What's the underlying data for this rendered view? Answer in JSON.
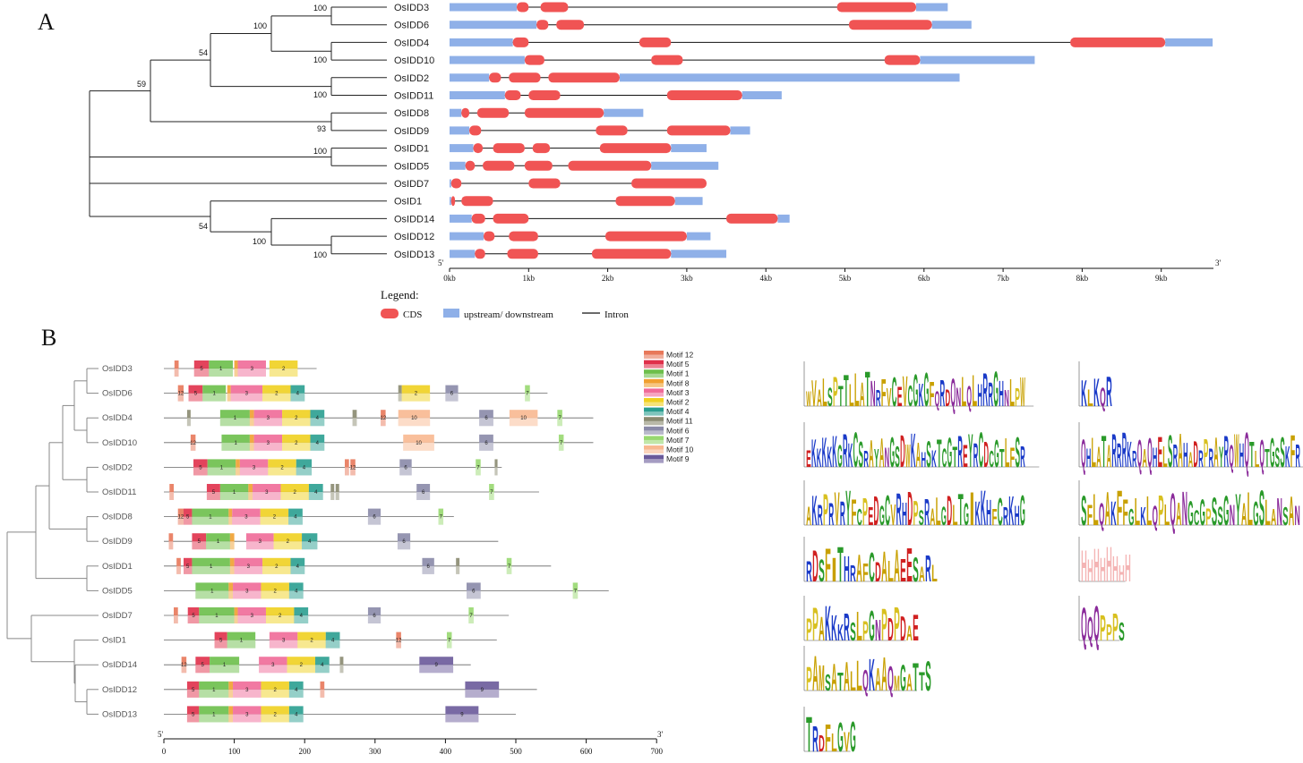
{
  "panels": {
    "a": "A",
    "b": "B"
  },
  "colors": {
    "cds": "#f05454",
    "utr": "#8fb0e8",
    "intron": "#111111",
    "tree": "#222222",
    "tree_b": "#888888"
  },
  "panel_a": {
    "genes": [
      "OsIDD3",
      "OsIDD6",
      "OsIDD4",
      "OsIDD10",
      "OsIDD2",
      "OsIDD11",
      "OsIDD8",
      "OsIDD9",
      "OsIDD1",
      "OsIDD5",
      "OsIDD7",
      "OsID1",
      "OsIDD14",
      "OsIDD12",
      "OsIDD13"
    ],
    "bootstrap": [
      "100",
      "100",
      "54",
      "100",
      "59",
      "100",
      "93",
      "100",
      "54",
      "100",
      "100"
    ],
    "end5": "5'",
    "end3": "3'",
    "axis_ticks": [
      "0kb",
      "1kb",
      "2kb",
      "3kb",
      "4kb",
      "5kb",
      "6kb",
      "7kb",
      "8kb",
      "9kb"
    ],
    "gene_structure": [
      {
        "start": 0,
        "end": 6.3,
        "cds": [
          [
            0.85,
            1.0
          ],
          [
            1.15,
            1.5
          ],
          [
            4.9,
            5.9
          ]
        ]
      },
      {
        "start": 0,
        "end": 6.6,
        "cds": [
          [
            1.1,
            1.25
          ],
          [
            1.35,
            1.7
          ],
          [
            5.05,
            6.1
          ]
        ]
      },
      {
        "start": 0,
        "end": 9.65,
        "cds": [
          [
            0.8,
            1.0
          ],
          [
            2.4,
            2.8
          ],
          [
            7.85,
            9.05
          ]
        ]
      },
      {
        "start": 0,
        "end": 7.4,
        "cds": [
          [
            0.95,
            1.2
          ],
          [
            2.55,
            2.95
          ],
          [
            5.5,
            5.95
          ]
        ]
      },
      {
        "start": 0,
        "end": 6.45,
        "cds": [
          [
            0.5,
            0.65
          ],
          [
            0.75,
            1.15
          ],
          [
            1.25,
            2.15
          ]
        ]
      },
      {
        "start": 0,
        "end": 4.2,
        "cds": [
          [
            0.7,
            0.9
          ],
          [
            1.0,
            1.4
          ],
          [
            2.75,
            3.7
          ]
        ]
      },
      {
        "start": 0,
        "end": 2.45,
        "cds": [
          [
            0.15,
            0.25
          ],
          [
            0.35,
            0.75
          ],
          [
            0.95,
            1.95
          ]
        ]
      },
      {
        "start": 0,
        "end": 3.8,
        "cds": [
          [
            0.25,
            0.4
          ],
          [
            1.85,
            2.25
          ],
          [
            2.75,
            3.55
          ]
        ]
      },
      {
        "start": 0,
        "end": 3.25,
        "cds": [
          [
            0.3,
            0.42
          ],
          [
            0.55,
            0.95
          ],
          [
            1.05,
            1.27
          ],
          [
            1.9,
            2.8
          ]
        ]
      },
      {
        "start": 0,
        "end": 3.4,
        "cds": [
          [
            0.2,
            0.32
          ],
          [
            0.42,
            0.82
          ],
          [
            0.95,
            1.3
          ],
          [
            1.5,
            2.55
          ]
        ]
      },
      {
        "start": 0,
        "end": 3.25,
        "cds": [
          [
            0.02,
            0.15
          ],
          [
            1.0,
            1.4
          ],
          [
            2.3,
            3.25
          ]
        ]
      },
      {
        "start": 0,
        "end": 3.2,
        "cds": [
          [
            0.02,
            0.07
          ],
          [
            0.15,
            0.55
          ],
          [
            2.1,
            2.85
          ]
        ]
      },
      {
        "start": 0,
        "end": 4.3,
        "cds": [
          [
            0.28,
            0.45
          ],
          [
            0.55,
            1.0
          ],
          [
            3.5,
            4.15
          ]
        ]
      },
      {
        "start": 0,
        "end": 3.3,
        "cds": [
          [
            0.43,
            0.57
          ],
          [
            0.75,
            1.12
          ],
          [
            1.97,
            3.0
          ]
        ]
      },
      {
        "start": 0,
        "end": 3.5,
        "cds": [
          [
            0.32,
            0.45
          ],
          [
            0.73,
            1.12
          ],
          [
            1.8,
            2.8
          ]
        ]
      }
    ],
    "legend": {
      "title": "Legend:",
      "cds": "CDS",
      "utr": "upstream/ downstream",
      "intron": "Intron"
    }
  },
  "panel_b": {
    "genes": [
      "OsIDD3",
      "OsIDD6",
      "OsIDD4",
      "OsIDD10",
      "OsIDD2",
      "OsIDD11",
      "OsIDD8",
      "OsIDD9",
      "OsIDD1",
      "OsIDD5",
      "OsIDD7",
      "OsID1",
      "OsIDD14",
      "OsIDD12",
      "OsIDD13"
    ],
    "end5": "5'",
    "end3": "3'",
    "axis_ticks": [
      "0",
      "100",
      "200",
      "300",
      "400",
      "500",
      "600",
      "700"
    ],
    "motif_legend": [
      {
        "label": "Motif 12",
        "id": "12",
        "color": "#e8785a"
      },
      {
        "label": "Motif 5",
        "id": "5",
        "color": "#e0304a"
      },
      {
        "label": "Motif 1",
        "id": "1",
        "color": "#6cbf4a"
      },
      {
        "label": "Motif 8",
        "id": "8",
        "color": "#f0a030"
      },
      {
        "label": "Motif 3",
        "id": "3",
        "color": "#f06a98"
      },
      {
        "label": "Motif 2",
        "id": "2",
        "color": "#f0d020"
      },
      {
        "label": "Motif 4",
        "id": "4",
        "color": "#2a9e90"
      },
      {
        "label": "Motif 11",
        "id": "11",
        "color": "#8a8a70"
      },
      {
        "label": "Motif 6",
        "id": "6",
        "color": "#8a8aa8"
      },
      {
        "label": "Motif 7",
        "id": "7",
        "color": "#98d870"
      },
      {
        "label": "Motif 10",
        "id": "10",
        "color": "#f8b890"
      },
      {
        "label": "Motif 9",
        "id": "9",
        "color": "#6a5a9a"
      }
    ],
    "proteins": [
      {
        "len": 217,
        "motifs": [
          [
            "12",
            15,
            21
          ],
          [
            "5",
            43,
            64
          ],
          [
            "1",
            64,
            98
          ],
          [
            "8",
            100,
            105
          ],
          [
            "3",
            105,
            145
          ],
          [
            "2",
            150,
            190
          ]
        ]
      },
      {
        "len": 545,
        "motifs": [
          [
            "12",
            20,
            28
          ],
          [
            "5",
            35,
            55
          ],
          [
            "1",
            55,
            88
          ],
          [
            "8",
            90,
            95
          ],
          [
            "3",
            95,
            140
          ],
          [
            "2",
            140,
            180
          ],
          [
            "4",
            180,
            200
          ],
          [
            "11",
            333,
            338
          ],
          [
            "2",
            338,
            378
          ],
          [
            "6",
            400,
            418
          ],
          [
            "7",
            513,
            520
          ]
        ]
      },
      {
        "len": 610,
        "motifs": [
          [
            "11",
            33,
            38
          ],
          [
            "1",
            80,
            122
          ],
          [
            "8",
            122,
            128
          ],
          [
            "3",
            128,
            168
          ],
          [
            "2",
            168,
            208
          ],
          [
            "4",
            208,
            228
          ],
          [
            "11",
            268,
            274
          ],
          [
            "12",
            308,
            315
          ],
          [
            "10",
            333,
            378
          ],
          [
            "6",
            448,
            468
          ],
          [
            "10",
            491,
            531
          ],
          [
            "7",
            559,
            566
          ]
        ]
      },
      {
        "len": 610,
        "motifs": [
          [
            "12",
            38,
            45
          ],
          [
            "1",
            82,
            122
          ],
          [
            "8",
            122,
            128
          ],
          [
            "3",
            128,
            168
          ],
          [
            "2",
            168,
            208
          ],
          [
            "4",
            208,
            228
          ],
          [
            "10",
            340,
            384
          ],
          [
            "6",
            448,
            468
          ],
          [
            "7",
            561,
            568
          ]
        ]
      },
      {
        "len": 480,
        "motifs": [
          [
            "5",
            42,
            62
          ],
          [
            "1",
            62,
            102
          ],
          [
            "8",
            102,
            108
          ],
          [
            "3",
            108,
            148
          ],
          [
            "2",
            148,
            188
          ],
          [
            "4",
            188,
            210
          ],
          [
            "12",
            257,
            263
          ],
          [
            "12",
            265,
            272
          ],
          [
            "6",
            335,
            352
          ],
          [
            "7",
            443,
            450
          ],
          [
            "11",
            470,
            474
          ]
        ]
      },
      {
        "len": 533,
        "motifs": [
          [
            "12",
            8,
            14
          ],
          [
            "5",
            61,
            80
          ],
          [
            "1",
            80,
            120
          ],
          [
            "8",
            120,
            126
          ],
          [
            "3",
            126,
            166
          ],
          [
            "2",
            166,
            206
          ],
          [
            "4",
            206,
            226
          ],
          [
            "11",
            237,
            242
          ],
          [
            "11",
            244,
            249
          ],
          [
            "6",
            359,
            378
          ],
          [
            "7",
            462,
            469
          ]
        ]
      },
      {
        "len": 412,
        "motifs": [
          [
            "12",
            20,
            28
          ],
          [
            "5",
            28,
            40
          ],
          [
            "1",
            40,
            92
          ],
          [
            "8",
            92,
            97
          ],
          [
            "3",
            97,
            137
          ],
          [
            "2",
            137,
            177
          ],
          [
            "4",
            177,
            197
          ],
          [
            "6",
            290,
            308
          ],
          [
            "7",
            390,
            397
          ]
        ]
      },
      {
        "len": 475,
        "motifs": [
          [
            "12",
            7,
            13
          ],
          [
            "5",
            40,
            60
          ],
          [
            "1",
            60,
            94
          ],
          [
            "8",
            94,
            100
          ],
          [
            "3",
            117,
            156
          ],
          [
            "2",
            156,
            196
          ],
          [
            "4",
            196,
            218
          ],
          [
            "6",
            332,
            350
          ]
        ]
      },
      {
        "len": 550,
        "motifs": [
          [
            "12",
            18,
            24
          ],
          [
            "5",
            28,
            40
          ],
          [
            "1",
            40,
            94
          ],
          [
            "8",
            94,
            100
          ],
          [
            "3",
            100,
            140
          ],
          [
            "2",
            140,
            180
          ],
          [
            "4",
            180,
            200
          ],
          [
            "6",
            367,
            384
          ],
          [
            "11",
            415,
            420
          ],
          [
            "7",
            487,
            494
          ]
        ]
      },
      {
        "len": 632,
        "motifs": [
          [
            "1",
            45,
            92
          ],
          [
            "8",
            92,
            98
          ],
          [
            "3",
            98,
            138
          ],
          [
            "2",
            138,
            178
          ],
          [
            "4",
            178,
            198
          ],
          [
            "6",
            430,
            450
          ],
          [
            "7",
            581,
            588
          ]
        ]
      },
      {
        "len": 490,
        "motifs": [
          [
            "12",
            14,
            20
          ],
          [
            "5",
            34,
            50
          ],
          [
            "1",
            50,
            100
          ],
          [
            "8",
            100,
            105
          ],
          [
            "3",
            105,
            145
          ],
          [
            "2",
            145,
            185
          ],
          [
            "4",
            185,
            205
          ],
          [
            "6",
            290,
            308
          ],
          [
            "7",
            433,
            440
          ]
        ]
      },
      {
        "len": 473,
        "motifs": [
          [
            "5",
            72,
            90
          ],
          [
            "1",
            90,
            130
          ],
          [
            "3",
            150,
            190
          ],
          [
            "2",
            190,
            230
          ],
          [
            "4",
            230,
            250
          ],
          [
            "12",
            330,
            337
          ],
          [
            "7",
            402,
            409
          ]
        ]
      },
      {
        "len": 436,
        "motifs": [
          [
            "12",
            25,
            32
          ],
          [
            "5",
            45,
            65
          ],
          [
            "1",
            65,
            107
          ],
          [
            "3",
            135,
            175
          ],
          [
            "2",
            175,
            215
          ],
          [
            "4",
            215,
            235
          ],
          [
            "11",
            250,
            255
          ],
          [
            "9",
            363,
            411
          ]
        ]
      },
      {
        "len": 530,
        "motifs": [
          [
            "5",
            33,
            50
          ],
          [
            "1",
            50,
            92
          ],
          [
            "8",
            92,
            98
          ],
          [
            "3",
            98,
            138
          ],
          [
            "2",
            138,
            178
          ],
          [
            "4",
            178,
            198
          ],
          [
            "12",
            222,
            228
          ],
          [
            "9",
            428,
            476
          ]
        ]
      },
      {
        "len": 500,
        "motifs": [
          [
            "5",
            33,
            50
          ],
          [
            "1",
            50,
            92
          ],
          [
            "8",
            92,
            98
          ],
          [
            "3",
            98,
            138
          ],
          [
            "2",
            138,
            178
          ],
          [
            "4",
            178,
            198
          ],
          [
            "9",
            400,
            447
          ]
        ]
      }
    ]
  },
  "logos": [
    {
      "seq": "WVALSPTTLLATNRFVCEVCGKGFQRDQNLQLHRRGHNLPW",
      "col": "left",
      "row": 0
    },
    {
      "seq": "KLKQR",
      "col": "right",
      "row": 0
    },
    {
      "seq": "EKKKKKGRKCSRAYANGSDWKAHSKTCGTREYRCDCGTLFSR",
      "col": "left",
      "row": 1
    },
    {
      "seq": "QHLATARRRKRQAQHELSRAHADRPRAYRQWHQTLQTGSSKFR",
      "col": "right",
      "row": 1
    },
    {
      "seq": "AKRPRVRYFCPEDGCVRHDPSRALGDLTGIKKHFCRKHG",
      "col": "left",
      "row": 2
    },
    {
      "seq": "SFLQAKFFGLKLQPLQANGCGPSSGNYALGSLANSAN",
      "col": "right",
      "row": 2
    },
    {
      "seq": "RDSFITHRAFCDALAEESARL",
      "col": "left",
      "row": 3
    },
    {
      "seq": "HHHHHHHH",
      "col": "right",
      "row": 3
    },
    {
      "seq": "PPAKKKRSLPGNPDPDAE",
      "col": "left",
      "row": 4
    },
    {
      "seq": "QQQPPPS",
      "col": "right",
      "row": 4
    },
    {
      "seq": "PAMSATALLQKAAQMGATTS",
      "col": "left",
      "row": 5
    },
    {
      "seq": "TRDFLGVG",
      "col": "left",
      "row": 6
    }
  ]
}
